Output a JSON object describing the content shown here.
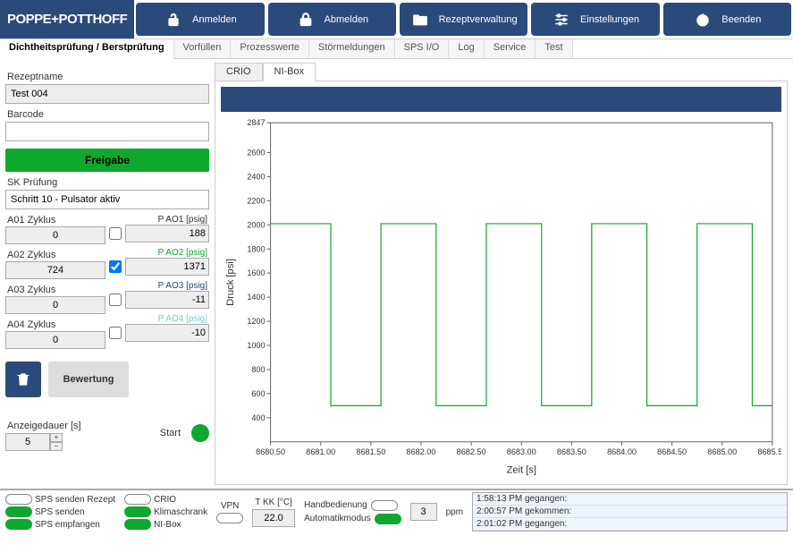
{
  "brand": "POPPE+POTTHOFF",
  "header": {
    "anmelden": "Anmelden",
    "abmelden": "Abmelden",
    "rezept": "Rezeptverwaltung",
    "einstellungen": "Einstellungen",
    "beenden": "Beenden"
  },
  "tabs": {
    "main": "Dichtheitsprüfung / Berstprüfung",
    "vorfuellen": "Vorfüllen",
    "prozesswerte": "Prozesswerte",
    "stoermeldungen": "Störmeldungen",
    "spsio": "SPS I/O",
    "log": "Log",
    "service": "Service",
    "test": "Test"
  },
  "left": {
    "rezeptname_label": "Rezeptname",
    "rezeptname_value": "Test 004",
    "barcode_label": "Barcode",
    "barcode_value": "",
    "freigabe": "Freigabe",
    "skpruefung_label": "SK Prüfung",
    "skpruefung_value": "Schritt 10 - Pulsator aktiv",
    "zyklus": [
      {
        "label": "A01 Zyklus",
        "value": "0"
      },
      {
        "label": "A02 Zyklus",
        "value": "724"
      },
      {
        "label": "A03 Zyklus",
        "value": "0"
      },
      {
        "label": "A04 Zyklus",
        "value": "0"
      }
    ],
    "pao": [
      {
        "label": "P AO1 [psig]",
        "value": "188",
        "color": "#333333",
        "checked": false
      },
      {
        "label": "P AO2 [psig]",
        "value": "1371",
        "color": "#0fa82e",
        "checked": true
      },
      {
        "label": "P AO3 [psig]",
        "value": "-11",
        "color": "#2a4a7a",
        "checked": false
      },
      {
        "label": "P AO4 [psig]",
        "value": "-10",
        "color": "#7fc9c9",
        "checked": false
      }
    ],
    "bewertung": "Bewertung",
    "anzeigedauer_label": "Anzeigedauer [s]",
    "anzeigedauer_value": "5",
    "start_label": "Start"
  },
  "chart_tabs": {
    "crio": "CRIO",
    "nibox": "NI-Box"
  },
  "chart": {
    "type": "line",
    "ylabel": "Druck [psi]",
    "xlabel": "Zeit [s]",
    "xlim": [
      8680.5,
      8685.5
    ],
    "ylim": [
      200,
      2847
    ],
    "xticks": [
      8680.5,
      8681.0,
      8681.5,
      8682.0,
      8682.5,
      8683.0,
      8683.5,
      8684.0,
      8684.5,
      8685.0,
      8685.5
    ],
    "yticks": [
      400,
      600,
      800,
      1000,
      1200,
      1400,
      1600,
      1800,
      2000,
      2200,
      2400,
      2600,
      2847
    ],
    "background_color": "#ffffff",
    "border_color": "#666666",
    "line_color": "#0fa82e",
    "line_width": 1.2,
    "tick_fontsize": 9,
    "label_fontsize": 11,
    "square_wave": {
      "low": 500,
      "high": 2010,
      "transitions_x": [
        8680.5,
        8680.55,
        8681.05,
        8681.1,
        8681.55,
        8681.6,
        8682.1,
        8682.15,
        8682.6,
        8682.65,
        8683.15,
        8683.2,
        8683.65,
        8683.7,
        8684.2,
        8684.25,
        8684.7,
        8684.75,
        8685.25,
        8685.3,
        8685.5
      ],
      "transitions_y": [
        2010,
        2010,
        2010,
        500,
        500,
        2010,
        2010,
        500,
        500,
        2010,
        2010,
        500,
        500,
        2010,
        2010,
        500,
        500,
        2010,
        2010,
        500,
        500
      ]
    }
  },
  "status": {
    "items1": [
      {
        "label": "SPS senden Rezept",
        "on": false
      },
      {
        "label": "SPS senden",
        "on": true
      },
      {
        "label": "SPS empfangen",
        "on": true
      }
    ],
    "items2": [
      {
        "label": "CRIO",
        "on": false
      },
      {
        "label": "Klimaschrank",
        "on": true
      },
      {
        "label": "NI-Box",
        "on": true
      }
    ],
    "vpn_label": "VPN",
    "tkk_label": "T KK [°C]",
    "tkk_value": "22.0",
    "hand_label": "Handbedienung",
    "auto_label": "Automatikmodus",
    "auto_on": true,
    "ppm_value": "3",
    "ppm_unit": "ppm",
    "log": [
      "1:58:13 PM gegangen:",
      "2:00:57 PM gekommen:",
      "2:01:02 PM gegangen:"
    ]
  },
  "colors": {
    "brand_bg": "#2a4a7a",
    "green": "#0fa82e"
  }
}
